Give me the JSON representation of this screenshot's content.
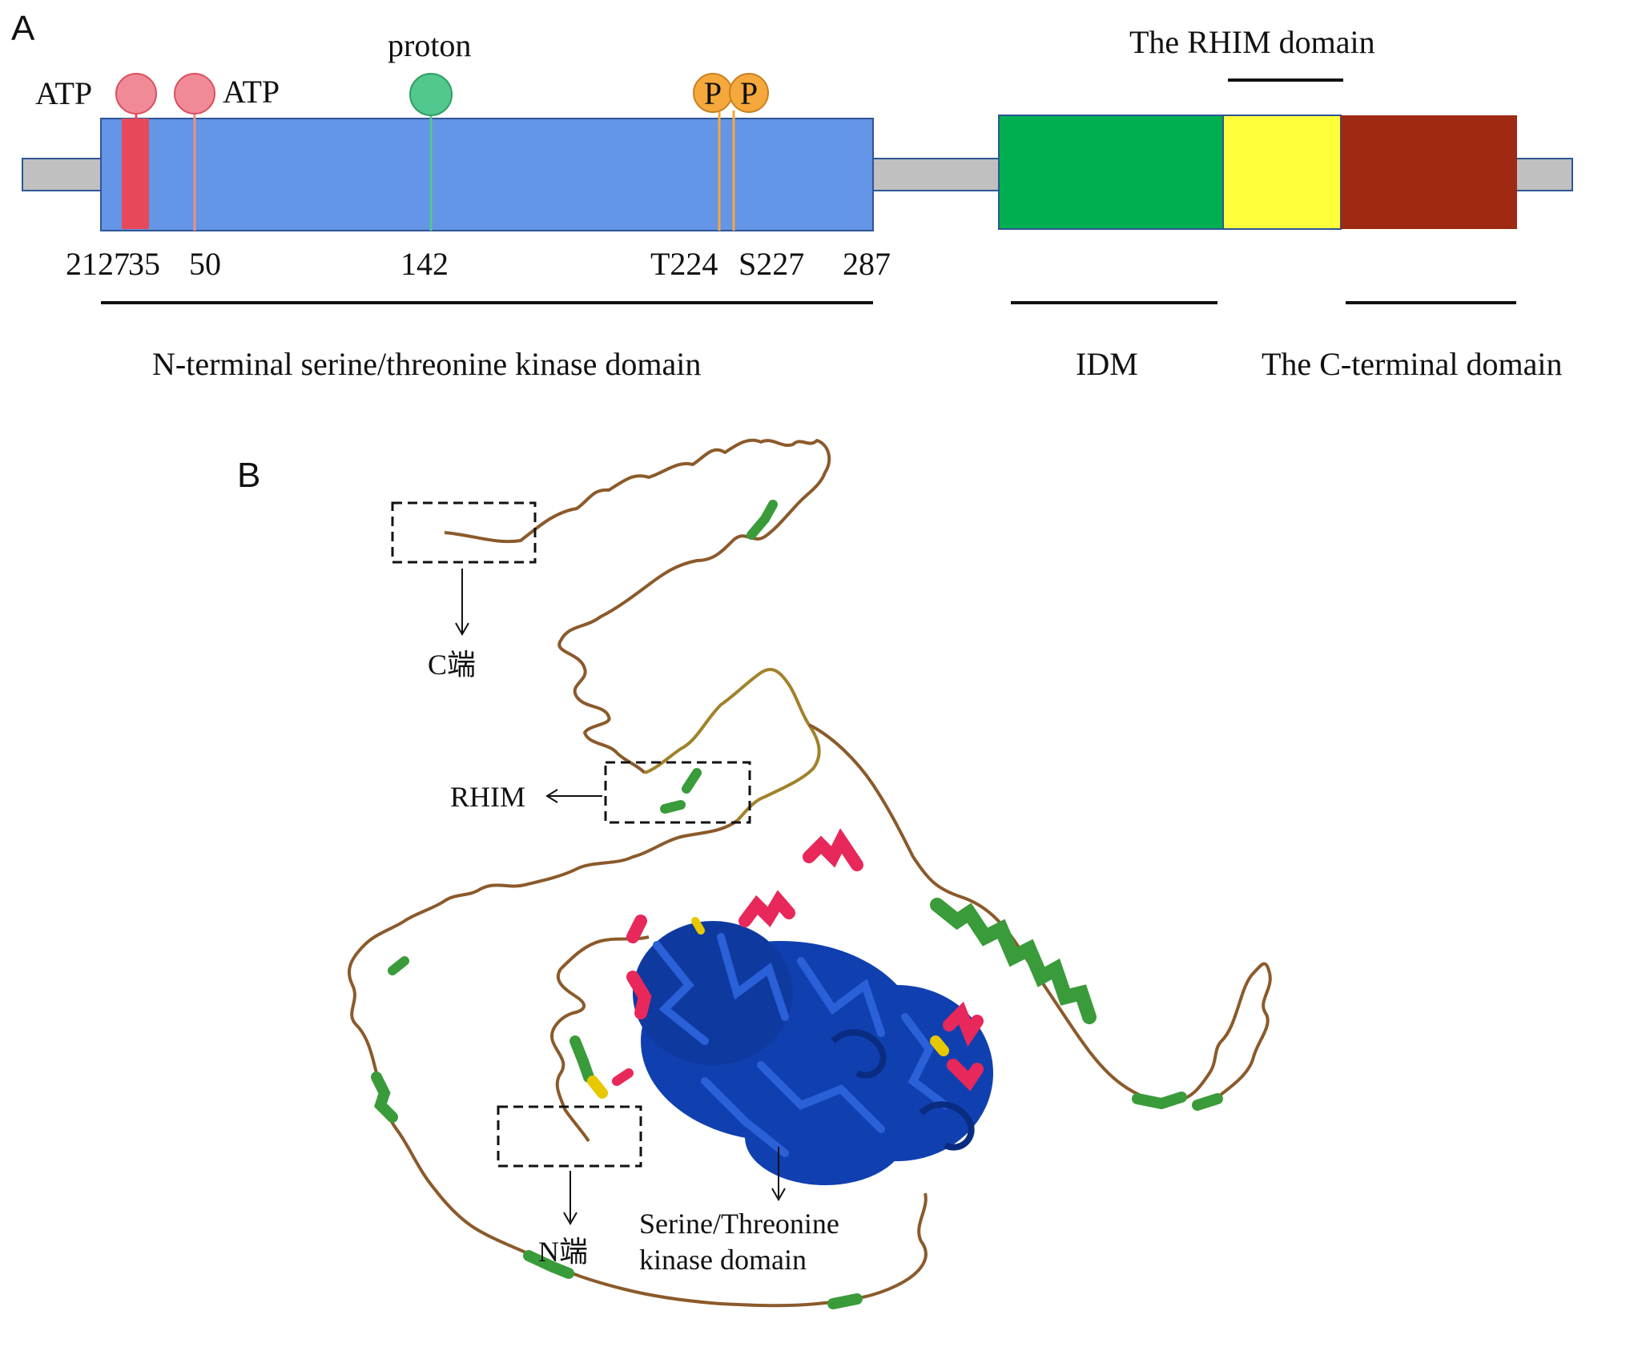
{
  "panels": {
    "a": "A",
    "b": "B"
  },
  "panel_a": {
    "labels": {
      "atp_left": "ATP",
      "atp_right": "ATP",
      "proton": "proton",
      "phospho_1": "P",
      "phospho_2": "P",
      "rhim_domain": "The RHIM domain",
      "n_terminal": "N-terminal serine/threonine kinase domain",
      "idm": "IDM",
      "c_terminal": "The C-terminal domain"
    },
    "positions": {
      "p21": "21",
      "p27": "27",
      "p35": "35",
      "p50": "50",
      "p142": "142",
      "t224": "T224",
      "s227": "S227",
      "p287": "287"
    },
    "colors": {
      "backbone": "#c0c0c0",
      "kinase": "#6495e6",
      "idm": "#00b050",
      "rhim": "#ffff3c",
      "c_term": "#9e2a14",
      "atp_marker": "#f08a96",
      "atp_bar": "#e8485a",
      "proton_marker": "#52c78e",
      "phospho_marker": "#f5a83c",
      "outline": "#2f5597"
    }
  },
  "panel_b": {
    "labels": {
      "c_end": "C端",
      "rhim": "RHIM",
      "n_end": "N端",
      "kinase_line1": "Serine/Threonine",
      "kinase_line2": "kinase domain"
    },
    "colors": {
      "coil": "#8b5a2b",
      "helix_green": "#3a9b3a",
      "helix_red": "#e8285a",
      "kinase_core": "#1040b0",
      "turn_yellow": "#e8c800"
    }
  }
}
